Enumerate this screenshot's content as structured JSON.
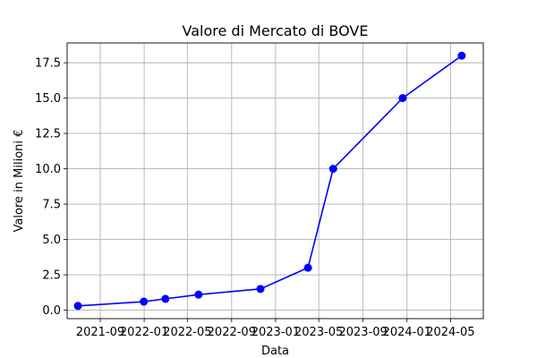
{
  "chart_data": {
    "type": "line",
    "title": "Valore di Mercato di BOVE",
    "xlabel": "Data",
    "ylabel": "Valore in Milioni €",
    "x_type": "date",
    "xlim": [
      "2021-06-01",
      "2024-07-31"
    ],
    "ylim": [
      -0.6,
      18.9
    ],
    "grid": true,
    "x_ticks": [
      {
        "date": "2021-09-01",
        "label": "2021-09"
      },
      {
        "date": "2022-01-01",
        "label": "2022-01"
      },
      {
        "date": "2022-05-01",
        "label": "2022-05"
      },
      {
        "date": "2022-09-01",
        "label": "2022-09"
      },
      {
        "date": "2023-01-01",
        "label": "2023-01"
      },
      {
        "date": "2023-05-01",
        "label": "2023-05"
      },
      {
        "date": "2023-09-01",
        "label": "2023-09"
      },
      {
        "date": "2024-01-01",
        "label": "2024-01"
      },
      {
        "date": "2024-05-01",
        "label": "2024-05"
      }
    ],
    "y_ticks": [
      {
        "value": 0.0,
        "label": "0.0"
      },
      {
        "value": 2.5,
        "label": "2.5"
      },
      {
        "value": 5.0,
        "label": "5.0"
      },
      {
        "value": 7.5,
        "label": "7.5"
      },
      {
        "value": 10.0,
        "label": "10.0"
      },
      {
        "value": 12.5,
        "label": "12.5"
      },
      {
        "value": 15.0,
        "label": "15.0"
      },
      {
        "value": 17.5,
        "label": "17.5"
      }
    ],
    "series": [
      {
        "color": "#0000ff",
        "x": [
          "2021-07-01",
          "2021-12-31",
          "2022-03-01",
          "2022-06-01",
          "2022-11-20",
          "2023-04-01",
          "2023-06-10",
          "2023-12-20",
          "2024-06-01"
        ],
        "values": [
          0.3,
          0.6,
          0.8,
          1.1,
          1.5,
          3.0,
          10.0,
          15.0,
          18.0
        ]
      }
    ]
  }
}
